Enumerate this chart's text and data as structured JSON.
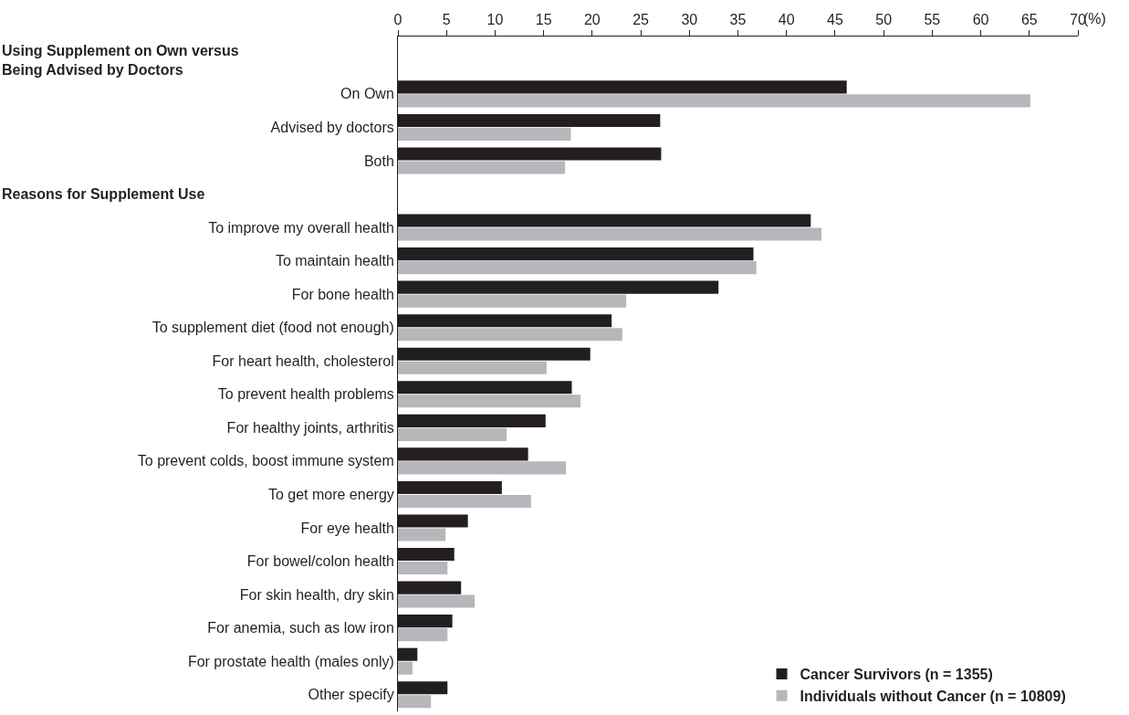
{
  "chart_data": {
    "type": "bar",
    "orientation": "horizontal",
    "xlabel": "(%)",
    "categories": [
      null,
      "On Own",
      "Advised by doctors",
      "Both",
      null,
      "To improve my overall health",
      "To maintain health",
      "For bone health",
      "To supplement diet (food not enough)",
      "For heart health, cholesterol",
      "To prevent health problems",
      "For healthy joints, arthritis",
      "To prevent colds, boost immune system",
      "To get more energy",
      "For eye health",
      "For bowel/colon health",
      "For skin health, dry skin",
      "For anemia, such as low iron",
      "For prostate health (males only)",
      "Other specify"
    ],
    "series": [
      {
        "name": "Cancer Survivors (n = 1355)",
        "color": "#231f20",
        "values": [
          null,
          46.2,
          27.0,
          27.1,
          null,
          42.5,
          36.6,
          33.0,
          22.0,
          19.8,
          17.9,
          15.2,
          13.4,
          10.7,
          7.2,
          5.8,
          6.5,
          5.6,
          2.0,
          5.1
        ]
      },
      {
        "name": "Individuals without Cancer (n = 10809)",
        "color": "#b6b7ba",
        "values": [
          null,
          65.1,
          17.8,
          17.2,
          null,
          43.6,
          36.9,
          23.5,
          23.1,
          15.3,
          18.8,
          11.2,
          17.3,
          13.7,
          4.9,
          5.1,
          7.9,
          5.1,
          1.5,
          3.4
        ]
      }
    ],
    "annotations": [
      "Using Supplement on Own versus Being Advised by Doctors",
      "Reasons for Supplement Use"
    ],
    "xlim": [
      0,
      70
    ],
    "xticks": [
      0,
      5,
      10,
      15,
      20,
      25,
      30,
      35,
      40,
      45,
      50,
      55,
      60,
      65,
      70
    ],
    "legend": "bottom right"
  }
}
